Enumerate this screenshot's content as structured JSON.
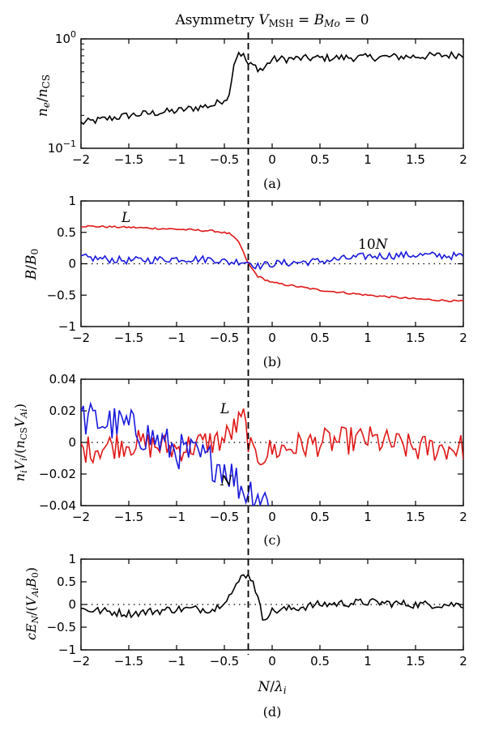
{
  "figure": {
    "title": "Asymmetry V_MSH = B_Mo = 0",
    "xlabel": "N/λ_i"
  },
  "chart_data": [
    {
      "type": "line",
      "panel_label": "(a)",
      "ylabel": "n_e/n_CS",
      "yscale": "log",
      "ylim": [
        0.1,
        1.0
      ],
      "yticks": [
        "10^-1",
        "10^0"
      ],
      "xlim": [
        -2,
        2
      ],
      "xticks": [
        "-2",
        "-1.5",
        "-1",
        "-0.5",
        "0",
        "0.5",
        "1",
        "1.5",
        "2"
      ],
      "vline_x": -0.25,
      "x": [
        -2.0,
        -1.5,
        -1.0,
        -0.6,
        -0.45,
        -0.4,
        -0.35,
        -0.3,
        -0.25,
        -0.2,
        -0.1,
        0.0,
        0.5,
        1.0,
        1.5,
        2.0
      ],
      "series": [
        {
          "color": "#000000",
          "values": [
            0.17,
            0.2,
            0.22,
            0.25,
            0.3,
            0.6,
            0.76,
            0.7,
            0.58,
            0.57,
            0.52,
            0.65,
            0.67,
            0.68,
            0.69,
            0.72
          ]
        }
      ]
    },
    {
      "type": "line",
      "panel_label": "(b)",
      "ylabel": "B/B_0",
      "ylim": [
        -1,
        1
      ],
      "yticks": [
        "-1",
        "-0.5",
        "0",
        "0.5",
        "1"
      ],
      "xlim": [
        -2,
        2
      ],
      "xticks": [
        "-2",
        "-1.5",
        "-1",
        "-0.5",
        "0",
        "0.5",
        "1",
        "1.5",
        "2"
      ],
      "vline_x": -0.25,
      "zero_line": "dotted",
      "x": [
        -2.0,
        -1.5,
        -1.0,
        -0.6,
        -0.45,
        -0.35,
        -0.25,
        -0.15,
        0.0,
        0.5,
        1.0,
        1.5,
        2.0
      ],
      "series": [
        {
          "name": "L",
          "color": "#e01818",
          "values": [
            0.6,
            0.58,
            0.55,
            0.52,
            0.48,
            0.35,
            0.0,
            -0.2,
            -0.3,
            -0.42,
            -0.5,
            -0.56,
            -0.6
          ]
        },
        {
          "name": "10N",
          "color": "#1a1adc",
          "values": [
            0.1,
            0.05,
            0.08,
            0.07,
            0.02,
            0.04,
            0.03,
            -0.04,
            0.0,
            0.04,
            0.12,
            0.14,
            0.12
          ]
        }
      ]
    },
    {
      "type": "line",
      "panel_label": "(c)",
      "ylabel": "n_i V_i/(n_CS V_Ai)",
      "ylim": [
        -0.04,
        0.04
      ],
      "yticks": [
        "-0.04",
        "-0.02",
        "0",
        "0.02",
        "0.04"
      ],
      "xlim": [
        -2,
        2
      ],
      "xticks": [
        "-2",
        "-1.5",
        "-1",
        "-0.5",
        "0",
        "0.5",
        "1",
        "1.5",
        "2"
      ],
      "vline_x": -0.25,
      "zero_line": "dotted",
      "x": [
        -2.0,
        -1.5,
        -1.0,
        -0.5,
        -0.3,
        -0.2,
        0.0,
        0.5,
        1.0,
        1.5,
        2.0
      ],
      "series": [
        {
          "name": "L",
          "color": "#e01818",
          "values": [
            -0.005,
            0.0,
            -0.004,
            0.002,
            0.015,
            -0.01,
            -0.005,
            0.0,
            0.002,
            -0.004,
            -0.003
          ]
        },
        {
          "name": "N",
          "color": "#1a1adc",
          "values": [
            0.015,
            0.01,
            -0.005,
            -0.015,
            -0.03,
            -0.03,
            -0.04,
            null,
            null,
            null,
            null
          ]
        }
      ]
    },
    {
      "type": "line",
      "panel_label": "(d)",
      "ylabel": "cE_N/(V_Ai B_0)",
      "xlabel": "N/λ_i",
      "ylim": [
        -1,
        1
      ],
      "yticks": [
        "-1",
        "-0.5",
        "0",
        "0.5",
        "1"
      ],
      "xlim": [
        -2,
        2
      ],
      "xticks": [
        "-2",
        "-1.5",
        "-1",
        "-0.5",
        "0",
        "0.5",
        "1",
        "1.5",
        "2"
      ],
      "vline_x": -0.25,
      "zero_line": "dotted",
      "x": [
        -2.0,
        -1.5,
        -1.0,
        -0.6,
        -0.4,
        -0.3,
        -0.2,
        -0.1,
        0.0,
        0.5,
        1.0,
        1.5,
        2.0
      ],
      "series": [
        {
          "color": "#000000",
          "values": [
            -0.1,
            -0.2,
            -0.1,
            -0.1,
            0.3,
            0.7,
            0.55,
            -0.3,
            -0.15,
            0.0,
            0.05,
            0.0,
            0.0
          ]
        }
      ]
    }
  ]
}
